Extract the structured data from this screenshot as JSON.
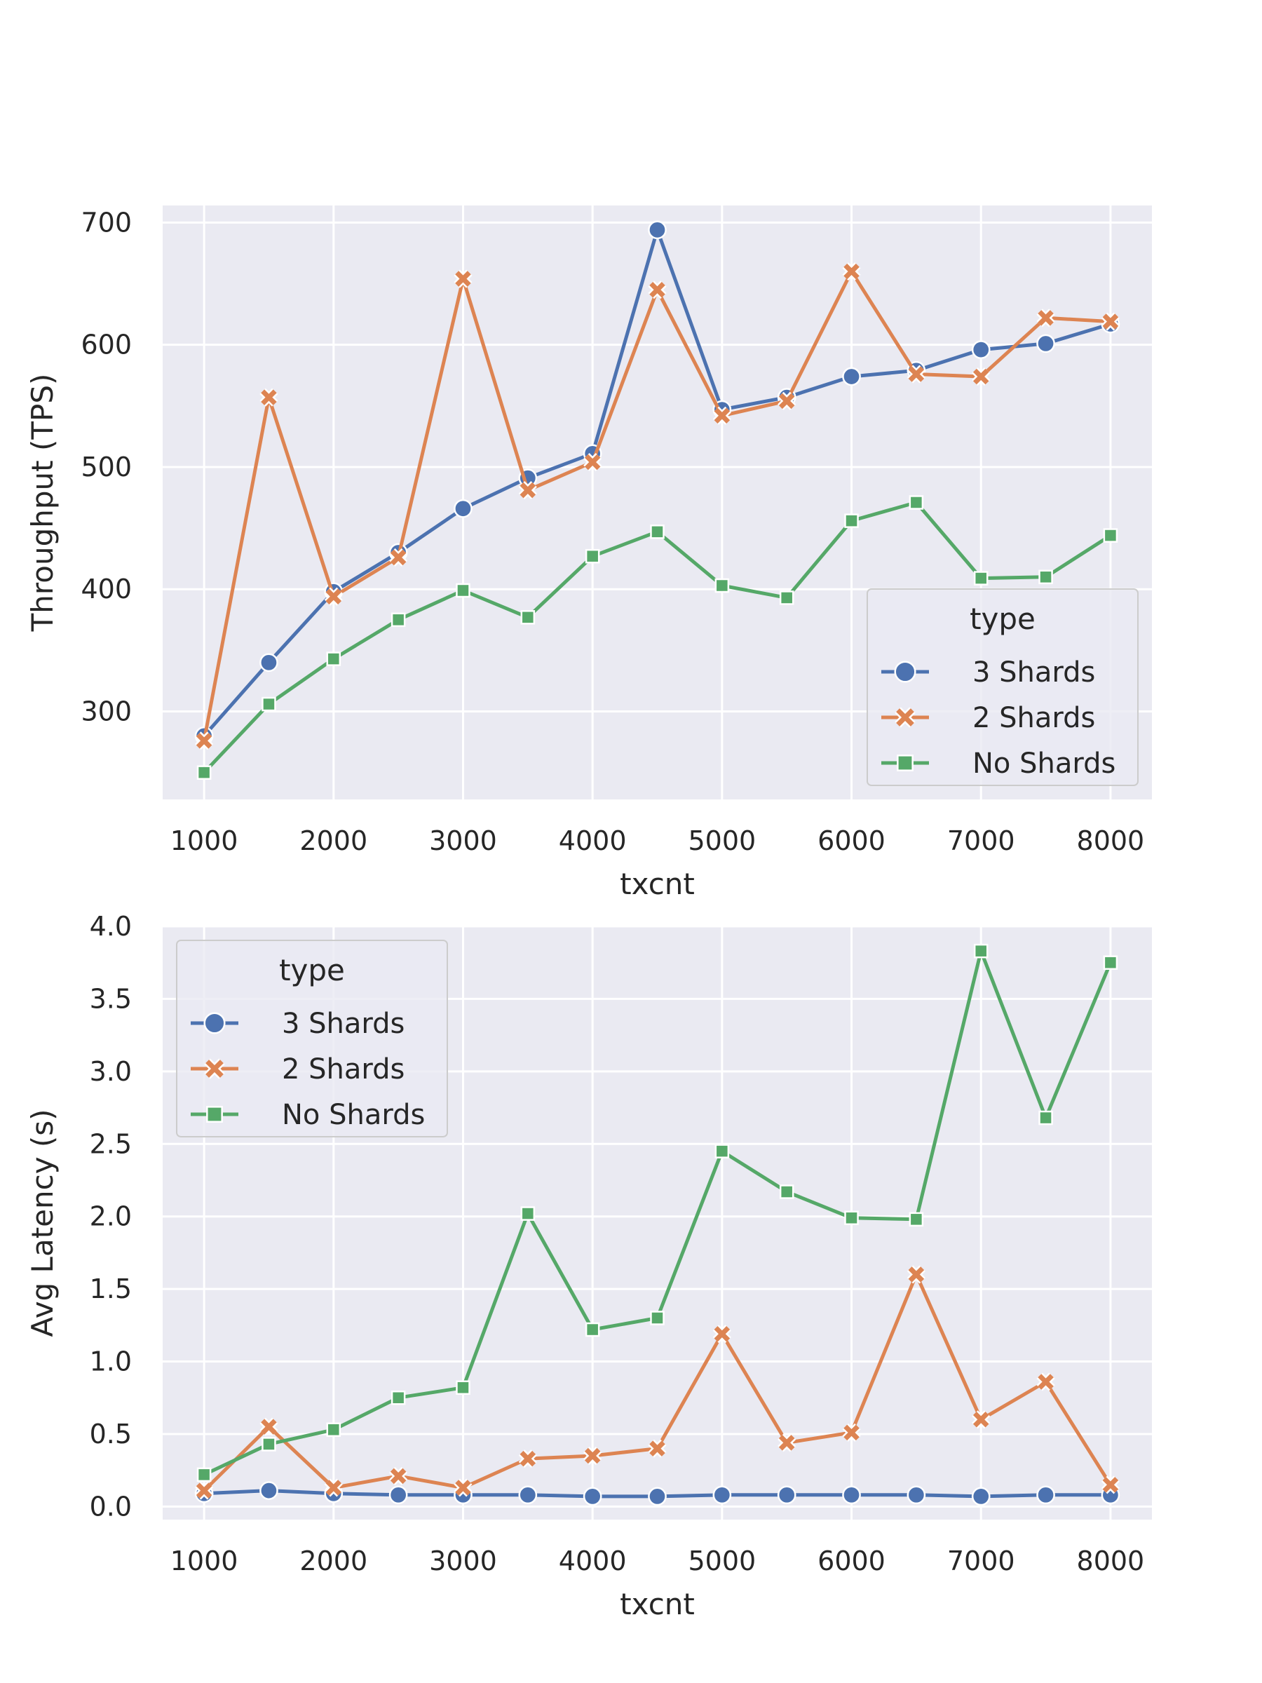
{
  "chart_data": [
    {
      "type": "line",
      "xlabel": "txcnt",
      "ylabel": "Throughput (TPS)",
      "xlim": [
        680,
        8320
      ],
      "ylim": [
        228,
        714
      ],
      "xticks": [
        1000,
        2000,
        3000,
        4000,
        5000,
        6000,
        7000,
        8000
      ],
      "yticks": [
        300,
        400,
        500,
        600,
        700
      ],
      "x": [
        1000,
        1500,
        2000,
        2500,
        3000,
        3500,
        4000,
        4500,
        5000,
        5500,
        6000,
        6500,
        7000,
        7500,
        8000
      ],
      "legend": {
        "title": "type",
        "position": "lower right"
      },
      "series": [
        {
          "name": "3 Shards",
          "color": "#4c72b0",
          "marker": "circle",
          "values": [
            280,
            340,
            398,
            430,
            466,
            491,
            511,
            694,
            547,
            557,
            574,
            579,
            596,
            601,
            617
          ]
        },
        {
          "name": "2 Shards",
          "color": "#dd8452",
          "marker": "x",
          "values": [
            276,
            557,
            394,
            426,
            654,
            481,
            504,
            645,
            542,
            554,
            660,
            576,
            574,
            622,
            619
          ]
        },
        {
          "name": "No Shards",
          "color": "#55a868",
          "marker": "square",
          "values": [
            250,
            306,
            343,
            375,
            399,
            377,
            427,
            447,
            403,
            393,
            456,
            471,
            409,
            410,
            444
          ]
        }
      ]
    },
    {
      "type": "line",
      "xlabel": "txcnt",
      "ylabel": "Avg Latency (s)",
      "xlim": [
        680,
        8320
      ],
      "ylim": [
        -0.09,
        4.0
      ],
      "xticks": [
        1000,
        2000,
        3000,
        4000,
        5000,
        6000,
        7000,
        8000
      ],
      "yticks": [
        0.0,
        0.5,
        1.0,
        1.5,
        2.0,
        2.5,
        3.0,
        3.5,
        4.0
      ],
      "x": [
        1000,
        1500,
        2000,
        2500,
        3000,
        3500,
        4000,
        4500,
        5000,
        5500,
        6000,
        6500,
        7000,
        7500,
        8000
      ],
      "legend": {
        "title": "type",
        "position": "upper left"
      },
      "series": [
        {
          "name": "3 Shards",
          "color": "#4c72b0",
          "marker": "circle",
          "values": [
            0.09,
            0.11,
            0.09,
            0.08,
            0.08,
            0.08,
            0.07,
            0.07,
            0.08,
            0.08,
            0.08,
            0.08,
            0.07,
            0.08,
            0.08
          ]
        },
        {
          "name": "2 Shards",
          "color": "#dd8452",
          "marker": "x",
          "values": [
            0.11,
            0.55,
            0.13,
            0.21,
            0.13,
            0.33,
            0.35,
            0.4,
            1.19,
            0.44,
            0.51,
            1.6,
            0.6,
            0.86,
            0.15
          ]
        },
        {
          "name": "No Shards",
          "color": "#55a868",
          "marker": "square",
          "values": [
            0.22,
            0.43,
            0.53,
            0.75,
            0.82,
            2.02,
            1.22,
            1.3,
            2.45,
            2.17,
            1.99,
            1.98,
            3.83,
            2.68,
            3.75
          ]
        }
      ]
    }
  ]
}
